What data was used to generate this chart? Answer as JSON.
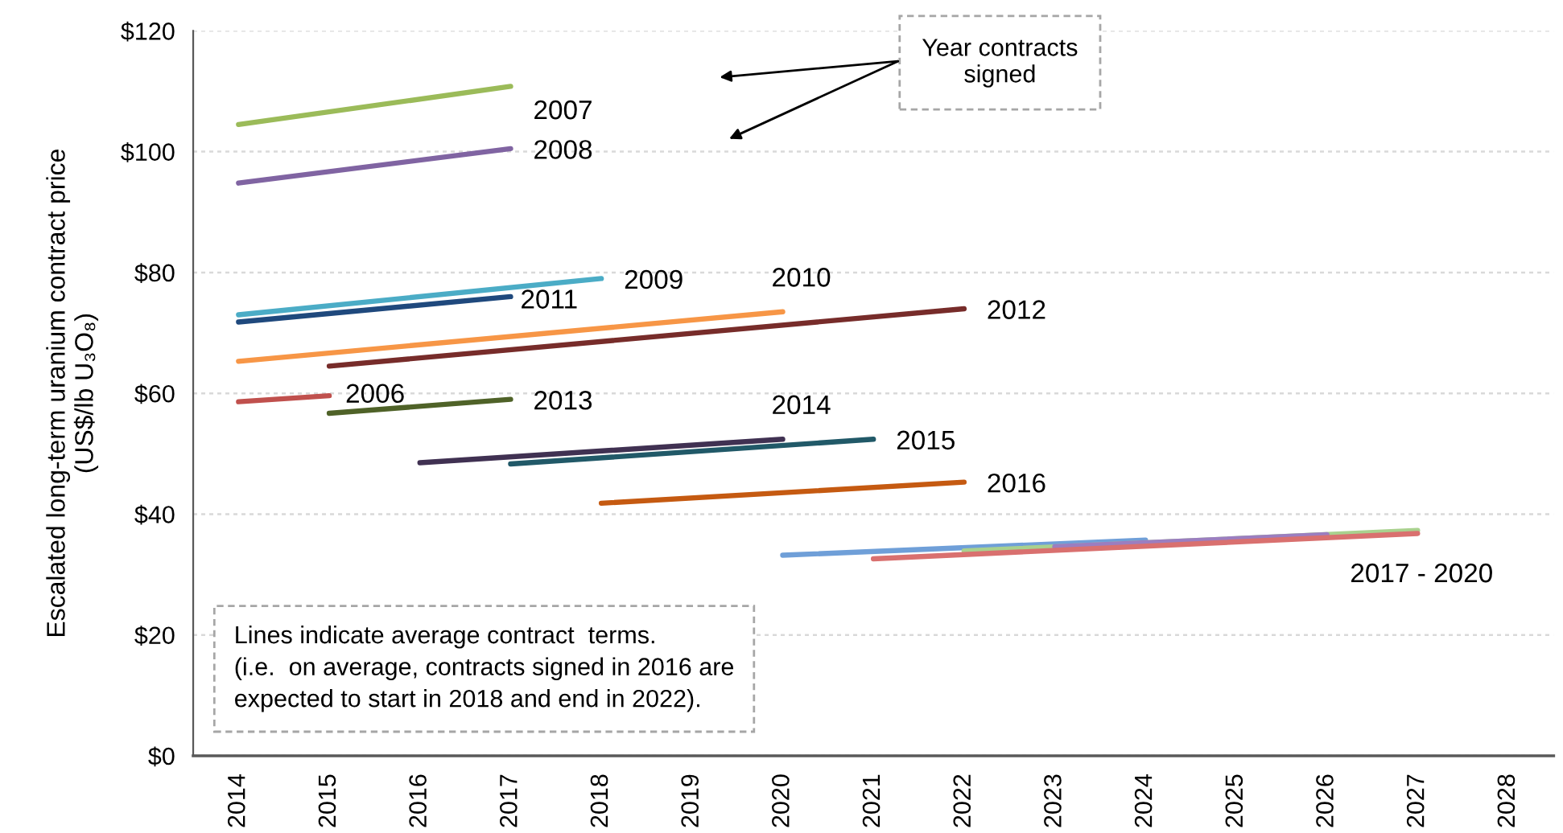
{
  "chart_data": {
    "type": "line",
    "ylabel": "Escalated long-term uranium contract price\n(US$/lb U₃O₈)",
    "xlim": [
      2013.5,
      2028.5
    ],
    "xticks": [
      2014,
      2015,
      2016,
      2017,
      2018,
      2019,
      2020,
      2021,
      2022,
      2023,
      2024,
      2025,
      2026,
      2027,
      2028
    ],
    "ylim": [
      0,
      120
    ],
    "yticks": [
      {
        "value": 0,
        "label": "$0"
      },
      {
        "value": 20,
        "label": "$20"
      },
      {
        "value": 40,
        "label": "$40"
      },
      {
        "value": 60,
        "label": "$60"
      },
      {
        "value": 80,
        "label": "$80"
      },
      {
        "value": 100,
        "label": "$100"
      },
      {
        "value": 120,
        "label": "$120"
      }
    ],
    "grid": "y",
    "legend": false,
    "marker": "none",
    "line_style": "solid",
    "series": [
      {
        "name": "2007",
        "color": "#9bbb59",
        "x": [
          2014,
          2017
        ],
        "values": [
          104.5,
          110.8
        ]
      },
      {
        "name": "2008",
        "color": "#8064a2",
        "x": [
          2014,
          2017
        ],
        "values": [
          94.8,
          100.5
        ]
      },
      {
        "name": "2009",
        "color": "#4bacc6",
        "x": [
          2014,
          2018
        ],
        "values": [
          73.0,
          79.0
        ]
      },
      {
        "name": "2011",
        "color": "#1f497d",
        "x": [
          2014,
          2017
        ],
        "values": [
          71.8,
          76.0
        ]
      },
      {
        "name": "2010",
        "color": "#f79646",
        "x": [
          2014,
          2020
        ],
        "values": [
          65.3,
          73.5
        ]
      },
      {
        "name": "2012",
        "color": "#772c2a",
        "x": [
          2015,
          2022
        ],
        "values": [
          64.5,
          74.0
        ]
      },
      {
        "name": "2006",
        "color": "#c0504d",
        "x": [
          2014,
          2015
        ],
        "values": [
          58.6,
          59.6
        ]
      },
      {
        "name": "2013",
        "color": "#4f6228",
        "x": [
          2015,
          2017
        ],
        "values": [
          56.7,
          59.0
        ]
      },
      {
        "name": "2014",
        "color": "#403152",
        "x": [
          2016,
          2020
        ],
        "values": [
          48.5,
          52.4
        ]
      },
      {
        "name": "2015",
        "color": "#215968",
        "x": [
          2017,
          2021
        ],
        "values": [
          48.3,
          52.4
        ]
      },
      {
        "name": "2016",
        "color": "#c55a11",
        "x": [
          2018,
          2022
        ],
        "values": [
          41.8,
          45.3
        ]
      },
      {
        "color": "#6f9fd8",
        "x": [
          2020,
          2024
        ],
        "values": [
          33.2,
          35.7
        ]
      },
      {
        "color": "#a9d18e",
        "x": [
          2022,
          2027
        ],
        "values": [
          33.9,
          37.3
        ]
      },
      {
        "color": "#9b7ec0",
        "x": [
          2023,
          2026
        ],
        "values": [
          34.6,
          36.6
        ]
      },
      {
        "name": "2017 - 2020",
        "color": "#d9706f",
        "x": [
          2021,
          2027
        ],
        "values": [
          32.6,
          36.8
        ]
      }
    ],
    "annotations": [
      "Year contracts\nsigned",
      "Lines indicate average contract  terms.\n(i.e.  on average, contracts signed in 2016 are\nexpected to start in 2018 and end in 2022)."
    ]
  }
}
